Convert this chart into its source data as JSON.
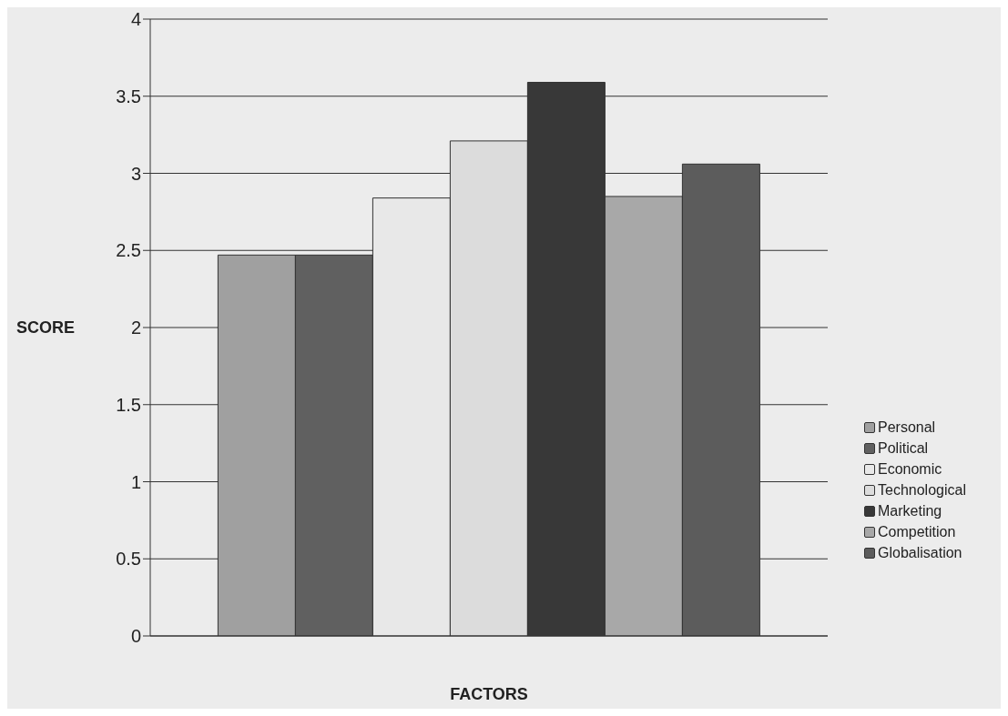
{
  "chart_data": {
    "type": "bar",
    "xlabel": "FACTORS",
    "ylabel": "SCORE",
    "categories": [
      null
    ],
    "series": [
      {
        "name": "Personal",
        "color": "#a0a0a0",
        "values": [
          2.47
        ]
      },
      {
        "name": "Political",
        "color": "#606060",
        "values": [
          2.47
        ]
      },
      {
        "name": "Economic",
        "color": "#e8e8e8",
        "values": [
          2.84
        ]
      },
      {
        "name": "Technological",
        "color": "#dcdcdc",
        "values": [
          3.21
        ]
      },
      {
        "name": "Marketing",
        "color": "#383838",
        "values": [
          3.59
        ]
      },
      {
        "name": "Competition",
        "color": "#a8a8a8",
        "values": [
          2.85
        ]
      },
      {
        "name": "Globalisation",
        "color": "#5c5c5c",
        "values": [
          3.06
        ]
      }
    ],
    "ylim": [
      0,
      4
    ],
    "yticks": [
      0,
      0.5,
      1,
      1.5,
      2,
      2.5,
      3,
      3.5,
      4
    ],
    "grid": "y",
    "legend": "right"
  }
}
